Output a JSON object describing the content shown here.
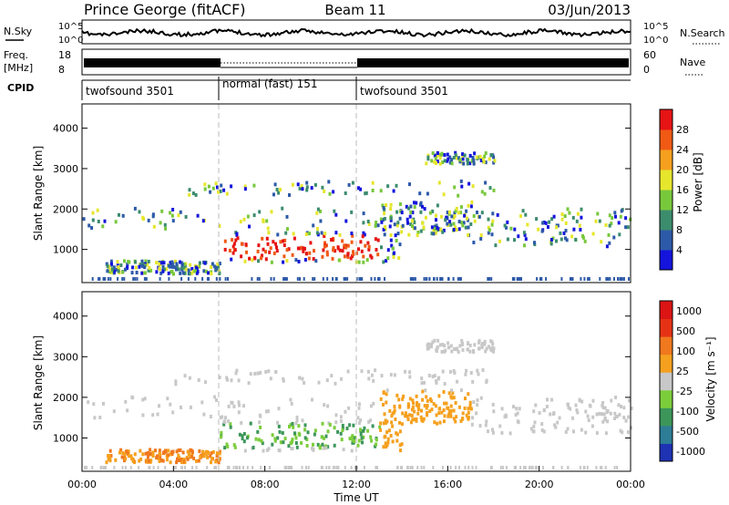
{
  "header": {
    "station": "Prince George (fitACF)",
    "beam": "Beam 11",
    "date": "03/Jun/2013"
  },
  "chart_data": [
    {
      "type": "line",
      "panel": "noise",
      "left_label": "N.Sky",
      "right_label": "N.Search",
      "y_ticks_left": [
        "10^5",
        "10^0"
      ],
      "y_ticks_right": [
        "10^5",
        "10^0"
      ],
      "log_scale": true
    },
    {
      "type": "line",
      "panel": "frequency",
      "left_label_top": "Freq.",
      "left_label_bottom": "[MHz]",
      "right_label": "Nave",
      "y_ticks_left": [
        "18",
        "8"
      ],
      "y_ticks_right": [
        "60",
        "0"
      ],
      "dotted_segment": {
        "start_hour": 6,
        "end_hour": 12
      }
    },
    {
      "type": "table",
      "panel": "cpid",
      "label": "CPID",
      "segments": [
        {
          "start_hour": 0,
          "end_hour": 6,
          "text": "twofsound 3501"
        },
        {
          "start_hour": 6,
          "end_hour": 12,
          "text": "normal (fast) 151"
        },
        {
          "start_hour": 12,
          "end_hour": 24,
          "text": "twofsound 3501"
        }
      ]
    },
    {
      "type": "heatmap",
      "panel": "power",
      "ylabel": "Slant Range [km]",
      "yticks": [
        1000,
        2000,
        3000,
        4000
      ],
      "ylim": [
        180,
        4600
      ],
      "colorbar_label": "Power [dB]",
      "colorbar_ticks": [
        "4",
        "8",
        "12",
        "16",
        "20",
        "24",
        "28"
      ],
      "colors": [
        "#1414dc",
        "#2d5aa8",
        "#3c8c6e",
        "#78c83c",
        "#e6e62d",
        "#f5a01e",
        "#f05a14",
        "#e61414"
      ]
    },
    {
      "type": "heatmap",
      "panel": "velocity",
      "ylabel": "Slant Range [km]",
      "yticks": [
        1000,
        2000,
        3000,
        4000
      ],
      "ylim": [
        180,
        4600
      ],
      "colorbar_label": "Velocity [m s⁻¹]",
      "colorbar_ticks": [
        "1000",
        "500",
        "100",
        "25",
        "-25",
        "-100",
        "-500",
        "-1000"
      ],
      "colors": [
        "#1e32b4",
        "#2d7d96",
        "#3c965a",
        "#7ccd3c",
        "#c8c8c8",
        "#f5a01e",
        "#f0781e",
        "#e63214",
        "#dc1414"
      ]
    }
  ],
  "x_axis": {
    "label": "Time UT",
    "ticks": [
      "00:00",
      "04:00",
      "08:00",
      "12:00",
      "16:00",
      "20:00",
      "00:00"
    ]
  }
}
